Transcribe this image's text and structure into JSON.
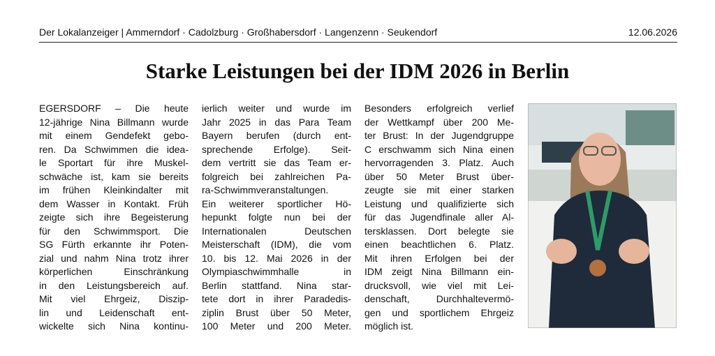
{
  "header": {
    "masthead": "Der Lokalanzeiger | Ammerndorf · Cadolzburg · Großhabersdorf · Langenzenn · Seukendorf",
    "date": "12.06.2026"
  },
  "article": {
    "title": "Starke Leistungen bei der IDM 2026 in Berlin",
    "columns": [
      {
        "lines": [
          "EGERSDORF – Die heute",
          "12-jährige Nina Billmann wurde",
          "mit einem Gendefekt gebo-",
          "ren. Da Schwimmen die idea-",
          "le Sportart für ihre Muskel-",
          "schwäche ist, kam sie bereits",
          "im frühen Kleinkindalter mit",
          "dem Wasser in Kontakt. Früh",
          "zeigte sich ihre Begeisterung",
          "für den Schwimmsport. Die",
          "SG Fürth erkannte ihr Poten-",
          "zial und nahm Nina trotz ihrer",
          "körperlichen Einschränkung",
          "in den Leistungsbereich auf.",
          "Mit viel Ehrgeiz, Diszip-",
          "lin und Leidenschaft ent-",
          "wickelte sich Nina kontinu-"
        ]
      },
      {
        "lines": [
          "ierlich weiter und wurde im",
          "Jahr 2025 in das Para Team",
          "Bayern berufen (durch ent-",
          "sprechende Erfolge). Seit-",
          "dem vertritt sie das Team er-",
          "folgreich bei zahlreichen Pa-",
          "ra-Schwimmveranstaltungen.",
          "Ein weiterer sportlicher Hö-",
          "hepunkt folgte nun bei der",
          "Internationalen Deutschen",
          "Meisterschaft (IDM), die vom",
          "10. bis 12. Mai 2026 in der",
          "Olympiaschwimmhalle in",
          "Berlin stattfand. Nina star-",
          "tete dort in ihrer Paradedis-",
          "ziplin Brust über 50 Meter,",
          "100 Meter und 200 Meter."
        ]
      },
      {
        "lines": [
          "Besonders erfolgreich verlief",
          "der Wettkampf über 200 Me-",
          "ter Brust: In der Jugendgruppe",
          "C erschwamm sich Nina einen",
          "hervorragenden 3. Platz. Auch",
          "über 50 Meter Brust über-",
          "zeugte sie mit einer starken",
          "Leistung und qualifizierte sich",
          "für das Jugendfinale aller Al-",
          "tersklassen. Dort belegte sie",
          "einen beachtlichen 6. Platz.",
          "Mit ihren Erfolgen bei der",
          "IDM zeigt Nina Billmann ein-",
          "drucksvoll, wie viel mit Lei-",
          "denschaft, Durchhaltevermö-",
          "gen und sportlichem Ehrgeiz",
          "möglich ist."
        ]
      }
    ]
  }
}
